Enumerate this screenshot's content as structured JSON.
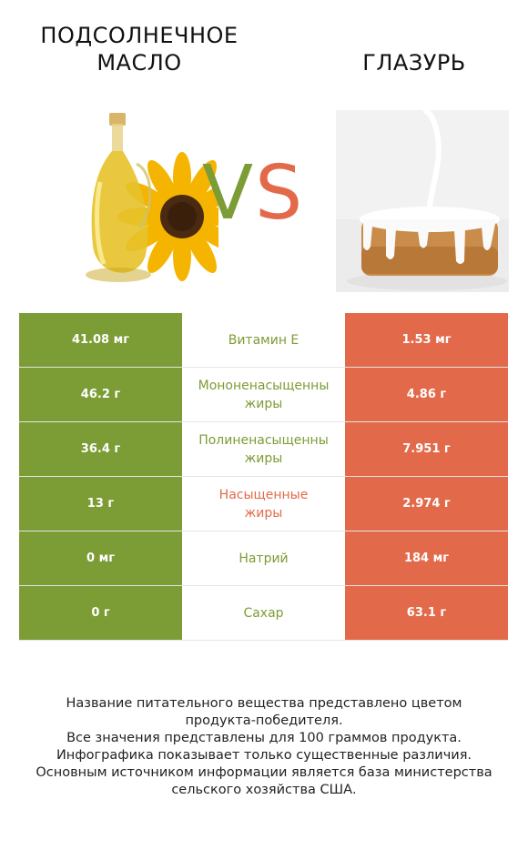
{
  "header": {
    "left_title_line1": "ПОДСОЛНЕЧНОЕ",
    "left_title_line2": "МАСЛО",
    "right_title": "ГЛАЗУРЬ",
    "vs_v": "V",
    "vs_s": "S"
  },
  "colors": {
    "left": "#7c9c35",
    "right": "#e26a4a"
  },
  "rows": [
    {
      "left": "41.08 мг",
      "label_lines": [
        "Витамин E"
      ],
      "winner": "left",
      "right": "1.53 мг"
    },
    {
      "left": "46.2 г",
      "label_lines": [
        "Мононенасыщенны",
        "жиры"
      ],
      "winner": "left",
      "right": "4.86 г"
    },
    {
      "left": "36.4 г",
      "label_lines": [
        "Полиненасыщенны",
        "жиры"
      ],
      "winner": "left",
      "right": "7.951 г"
    },
    {
      "left": "13 г",
      "label_lines": [
        "Насыщенные",
        "жиры"
      ],
      "winner": "right",
      "right": "2.974 г"
    },
    {
      "left": "0 мг",
      "label_lines": [
        "Натрий"
      ],
      "winner": "left",
      "right": "184 мг"
    },
    {
      "left": "0 г",
      "label_lines": [
        "Сахар"
      ],
      "winner": "left",
      "right": "63.1 г"
    }
  ],
  "footer": {
    "line1": "Название питательного вещества представлено цветом",
    "line2": "продукта-победителя.",
    "line3": "Все значения представлены для 100 граммов продукта.",
    "line4": "Инфографика показывает только существенные различия.",
    "line5": "Основным источником информации является база министерства",
    "line6": "сельского хозяйства США."
  }
}
